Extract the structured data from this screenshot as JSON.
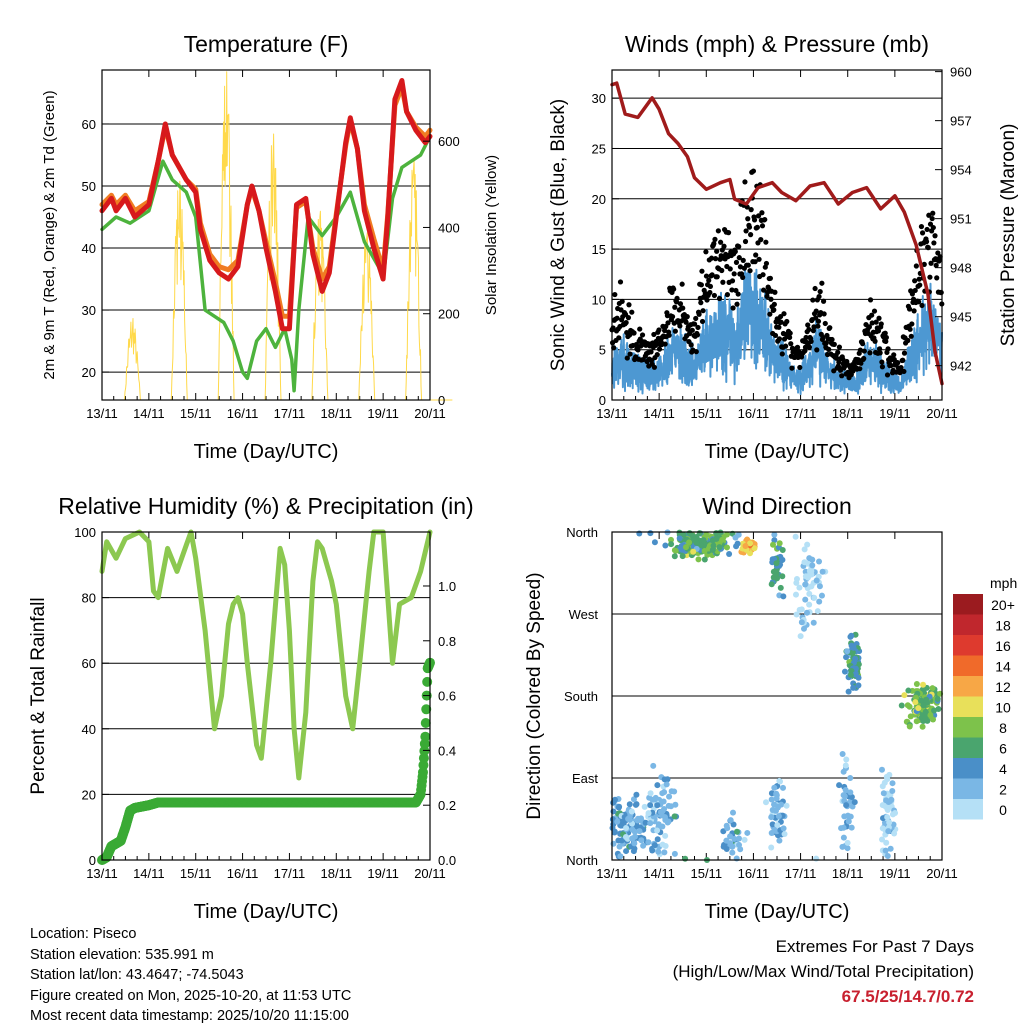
{
  "chart_data": [
    {
      "type": "line",
      "title": "Temperature (F)",
      "xlabel": "Time (Day/UTC)",
      "ylabel": "2m & 9m T (Red, Orange) & 2m Td (Green)",
      "ylabel_right": "Solar Insolation (Yellow)",
      "x_ticks": [
        "13/11",
        "14/11",
        "15/11",
        "16/11",
        "17/11",
        "18/11",
        "19/11",
        "20/11"
      ],
      "xlim": [
        0,
        7
      ],
      "ylim": [
        15.5,
        68.7
      ],
      "y_ticks": [
        20,
        30,
        40,
        50,
        60
      ],
      "ylim_right": [
        0,
        765
      ],
      "y_ticks_right": [
        0,
        200,
        400,
        600
      ],
      "series": [
        {
          "name": "2m T",
          "color": "#d7191c",
          "axis": "left",
          "x": [
            0,
            0.2,
            0.3,
            0.5,
            0.7,
            1.0,
            1.2,
            1.35,
            1.5,
            1.8,
            2.0,
            2.1,
            2.3,
            2.5,
            2.7,
            2.9,
            3.1,
            3.2,
            3.35,
            3.5,
            3.7,
            3.85,
            4.0,
            4.15,
            4.35,
            4.5,
            4.7,
            4.85,
            5.0,
            5.2,
            5.3,
            5.45,
            5.6,
            5.8,
            6.0,
            6.1,
            6.25,
            6.4,
            6.5,
            6.7,
            6.9,
            7.0
          ],
          "y": [
            46,
            48,
            46,
            48,
            45,
            47,
            54,
            60,
            55,
            51,
            49,
            43,
            38,
            36,
            35,
            37,
            47,
            50,
            46,
            40,
            33,
            27,
            27,
            47,
            48,
            39,
            33,
            36,
            45,
            57,
            61,
            56,
            46,
            40,
            35,
            45,
            64,
            67,
            62,
            59,
            57,
            58
          ]
        },
        {
          "name": "9m T",
          "color": "#f07c22",
          "axis": "left",
          "x": [
            0,
            0.2,
            0.3,
            0.5,
            0.7,
            1.0,
            1.2,
            1.35,
            1.5,
            1.8,
            2.0,
            2.1,
            2.3,
            2.5,
            2.7,
            2.9,
            3.1,
            3.2,
            3.35,
            3.5,
            3.7,
            3.85,
            4.0,
            4.15,
            4.35,
            4.5,
            4.7,
            4.85,
            5.0,
            5.2,
            5.3,
            5.45,
            5.6,
            5.8,
            6.0,
            6.1,
            6.25,
            6.4,
            6.5,
            6.7,
            6.9,
            7.0
          ],
          "y": [
            47,
            48.5,
            47,
            48.5,
            46,
            47.5,
            54,
            59.5,
            55,
            51,
            49.5,
            44,
            39,
            37,
            36.5,
            38,
            47,
            49.5,
            46,
            41,
            34.5,
            29,
            29,
            46.5,
            47.5,
            40,
            35,
            37,
            45.5,
            56.5,
            60.5,
            56,
            47,
            41.5,
            36.5,
            45.5,
            63,
            66,
            62,
            59.5,
            58,
            59
          ]
        },
        {
          "name": "2m Td",
          "color": "#4db33d",
          "axis": "left",
          "x": [
            0,
            0.3,
            0.6,
            1.0,
            1.3,
            1.5,
            1.8,
            2.0,
            2.2,
            2.4,
            2.6,
            2.8,
            3.0,
            3.1,
            3.3,
            3.5,
            3.7,
            3.9,
            4.05,
            4.1,
            4.2,
            4.4,
            4.7,
            5.0,
            5.3,
            5.6,
            5.9,
            6.0,
            6.2,
            6.4,
            6.6,
            6.8,
            7.0
          ],
          "y": [
            43,
            45,
            44,
            46,
            54,
            51,
            49,
            45,
            30,
            29,
            28,
            25,
            20,
            19,
            25,
            27,
            24,
            27,
            22,
            17,
            30,
            45,
            42,
            45,
            49,
            41,
            37,
            35,
            48,
            53,
            54,
            55,
            58
          ]
        },
        {
          "name": "Solar Insolation",
          "color": "#ffd94a",
          "axis": "right",
          "day_peaks": [
            190,
            510,
            765,
            620,
            440,
            390,
            560
          ]
        }
      ]
    },
    {
      "type": "scatter",
      "title": "Winds (mph) & Pressure (mb)",
      "xlabel": "Time (Day/UTC)",
      "ylabel": "Sonic Wind & Gust (Blue, Black)",
      "ylabel_right": "Station Pressure (Maroon)",
      "x_ticks": [
        "13/11",
        "14/11",
        "15/11",
        "16/11",
        "17/11",
        "18/11",
        "19/11",
        "20/11"
      ],
      "xlim": [
        0,
        7
      ],
      "ylim": [
        0,
        32.8
      ],
      "y_ticks": [
        0,
        5,
        10,
        15,
        20,
        25,
        30
      ],
      "ylim_right": [
        939.9,
        960.1
      ],
      "y_ticks_right": [
        942,
        945,
        948,
        951,
        954,
        957,
        960
      ],
      "wind_mean": [
        3,
        4,
        3,
        2.5,
        2.5,
        3,
        5,
        4,
        3,
        5,
        6,
        7,
        6,
        8,
        9,
        6,
        4,
        3,
        2,
        3,
        5,
        3,
        2,
        1.5,
        2,
        4,
        3,
        2,
        1.5,
        4,
        6,
        7,
        5.5
      ],
      "gust_mean": [
        7,
        9,
        6,
        5,
        5,
        6,
        10,
        8,
        6,
        11,
        14,
        15,
        12,
        17,
        19,
        13,
        8,
        6,
        4,
        6,
        9,
        6,
        4,
        3,
        4,
        8,
        6,
        4,
        3,
        9,
        14,
        16,
        12
      ],
      "wind_max": 14.7,
      "pressure": {
        "color": "#a01b1b",
        "x": [
          0,
          0.1,
          0.28,
          0.55,
          0.85,
          1.0,
          1.2,
          1.4,
          1.6,
          1.75,
          2.0,
          2.3,
          2.5,
          2.6,
          2.85,
          3.1,
          3.4,
          3.6,
          3.9,
          4.2,
          4.5,
          4.8,
          5.1,
          5.4,
          5.7,
          6.0,
          6.2,
          6.45,
          6.7,
          6.85,
          7.0
        ],
        "y": [
          959.2,
          959.3,
          957.4,
          957.2,
          958.4,
          957.7,
          956.2,
          955.6,
          954.8,
          953.5,
          952.8,
          953.2,
          953.4,
          952.2,
          951.9,
          952.9,
          953.2,
          952.6,
          952.1,
          953.0,
          953.2,
          951.9,
          952.6,
          952.9,
          951.6,
          952.4,
          951.4,
          949.4,
          946.4,
          942.9,
          940.9
        ]
      },
      "colors": {
        "wind": "#4d98d2",
        "gust": "#000000"
      }
    },
    {
      "type": "line",
      "title": "Relative Humidity (%) & Precipitation (in)",
      "xlabel": "Time (Day/UTC)",
      "ylabel": "Percent & Total Rainfall",
      "x_ticks": [
        "13/11",
        "14/11",
        "15/11",
        "16/11",
        "17/11",
        "18/11",
        "19/11",
        "20/11"
      ],
      "xlim": [
        0,
        7
      ],
      "ylim": [
        0,
        100
      ],
      "y_ticks": [
        0,
        20,
        40,
        60,
        80,
        100
      ],
      "ylim_right": [
        0,
        1.197
      ],
      "y_ticks_right": [
        "0.0",
        "0.2",
        "0.4",
        "0.6",
        "0.8",
        "1.0"
      ],
      "series": [
        {
          "name": "Relative Humidity",
          "color": "#8cc850",
          "axis": "left",
          "x": [
            0,
            0.1,
            0.3,
            0.5,
            0.8,
            1.0,
            1.1,
            1.2,
            1.4,
            1.6,
            1.8,
            1.9,
            2.0,
            2.2,
            2.3,
            2.4,
            2.55,
            2.7,
            2.8,
            2.9,
            3.0,
            3.1,
            3.3,
            3.4,
            3.6,
            3.8,
            3.9,
            4.0,
            4.1,
            4.2,
            4.35,
            4.5,
            4.6,
            4.7,
            4.9,
            5.0,
            5.2,
            5.35,
            5.5,
            5.7,
            5.8,
            6.0,
            6.2,
            6.35,
            6.6,
            6.8,
            7.0
          ],
          "y": [
            88,
            97,
            92,
            98,
            100,
            97,
            82,
            80,
            95,
            88,
            96,
            100,
            92,
            70,
            55,
            40,
            50,
            72,
            78,
            80,
            75,
            60,
            35,
            31,
            60,
            95,
            90,
            70,
            40,
            25,
            45,
            85,
            97,
            95,
            85,
            78,
            50,
            40,
            60,
            88,
            100,
            100,
            60,
            78,
            80,
            88,
            100
          ]
        },
        {
          "name": "Total Rainfall",
          "color": "#3aaa35",
          "axis": "right",
          "x": [
            0,
            0.1,
            0.2,
            0.4,
            0.5,
            0.6,
            0.7,
            1.0,
            1.2,
            6.7,
            6.8,
            6.85,
            6.9,
            6.95,
            7.0
          ],
          "y": [
            0,
            0.01,
            0.05,
            0.07,
            0.12,
            0.18,
            0.19,
            0.2,
            0.21,
            0.21,
            0.24,
            0.32,
            0.45,
            0.7,
            0.72
          ]
        }
      ]
    },
    {
      "type": "scatter",
      "title": "Wind Direction",
      "xlabel": "Time (Day/UTC)",
      "ylabel": "Direction (Colored By Speed)",
      "x_ticks": [
        "13/11",
        "14/11",
        "15/11",
        "16/11",
        "17/11",
        "18/11",
        "19/11",
        "20/11"
      ],
      "xlim": [
        0,
        7
      ],
      "ylim": [
        0,
        360
      ],
      "y_ticks": [
        "North",
        "East",
        "South",
        "West",
        "North"
      ],
      "y_tick_values": [
        0,
        90,
        180,
        270,
        360
      ],
      "clusters": [
        {
          "t": 0.3,
          "dir": 40,
          "speed": 3,
          "n": 120,
          "st": 0.35,
          "sd": 30
        },
        {
          "t": 1.0,
          "dir": 50,
          "speed": 2,
          "n": 80,
          "st": 0.3,
          "sd": 45
        },
        {
          "t": 1.75,
          "dir": 345,
          "speed": 6,
          "n": 120,
          "st": 0.4,
          "sd": 12
        },
        {
          "t": 2.2,
          "dir": 350,
          "speed": 7,
          "n": 60,
          "st": 0.2,
          "sd": 10
        },
        {
          "t": 2.9,
          "dir": 345,
          "speed": 11,
          "n": 40,
          "st": 0.12,
          "sd": 8
        },
        {
          "t": 2.6,
          "dir": 20,
          "speed": 3,
          "n": 40,
          "st": 0.2,
          "sd": 30
        },
        {
          "t": 3.5,
          "dir": 320,
          "speed": 5,
          "n": 40,
          "st": 0.12,
          "sd": 25
        },
        {
          "t": 3.5,
          "dir": 50,
          "speed": 2,
          "n": 50,
          "st": 0.15,
          "sd": 40
        },
        {
          "t": 4.2,
          "dir": 300,
          "speed": 1,
          "n": 60,
          "st": 0.25,
          "sd": 50
        },
        {
          "t": 5.1,
          "dir": 215,
          "speed": 5,
          "n": 70,
          "st": 0.12,
          "sd": 25
        },
        {
          "t": 5.0,
          "dir": 60,
          "speed": 2,
          "n": 40,
          "st": 0.15,
          "sd": 40
        },
        {
          "t": 5.85,
          "dir": 50,
          "speed": 1,
          "n": 60,
          "st": 0.12,
          "sd": 40
        },
        {
          "t": 6.6,
          "dir": 170,
          "speed": 7,
          "n": 120,
          "st": 0.3,
          "sd": 20
        }
      ],
      "legend": {
        "title": "mph",
        "position": "right",
        "labels": [
          "20+",
          "18",
          "16",
          "14",
          "12",
          "10",
          "8",
          "6",
          "4",
          "2",
          "0"
        ],
        "colors": [
          "#9b1b1f",
          "#c0272d",
          "#de3a2e",
          "#f06a2a",
          "#f7a746",
          "#e8e05a",
          "#7dc24b",
          "#4aa56e",
          "#4a8fc8",
          "#7ab7e5",
          "#b5e0f6"
        ]
      }
    }
  ],
  "info": {
    "location": "Location: Piseco",
    "elevation": "Station elevation: 535.991 m",
    "latlon": "Station lat/lon: 43.4647; -74.5043",
    "created": "Figure created on Mon, 2025-10-20, at 11:53 UTC",
    "timestamp": "Most recent data timestamp: 2025/10/20 11:15:00"
  },
  "extremes": {
    "title": "Extremes For Past 7 Days",
    "subtitle": "(High/Low/Max Wind/Total Precipitation)",
    "values": "67.5/25/14.7/0.72"
  }
}
